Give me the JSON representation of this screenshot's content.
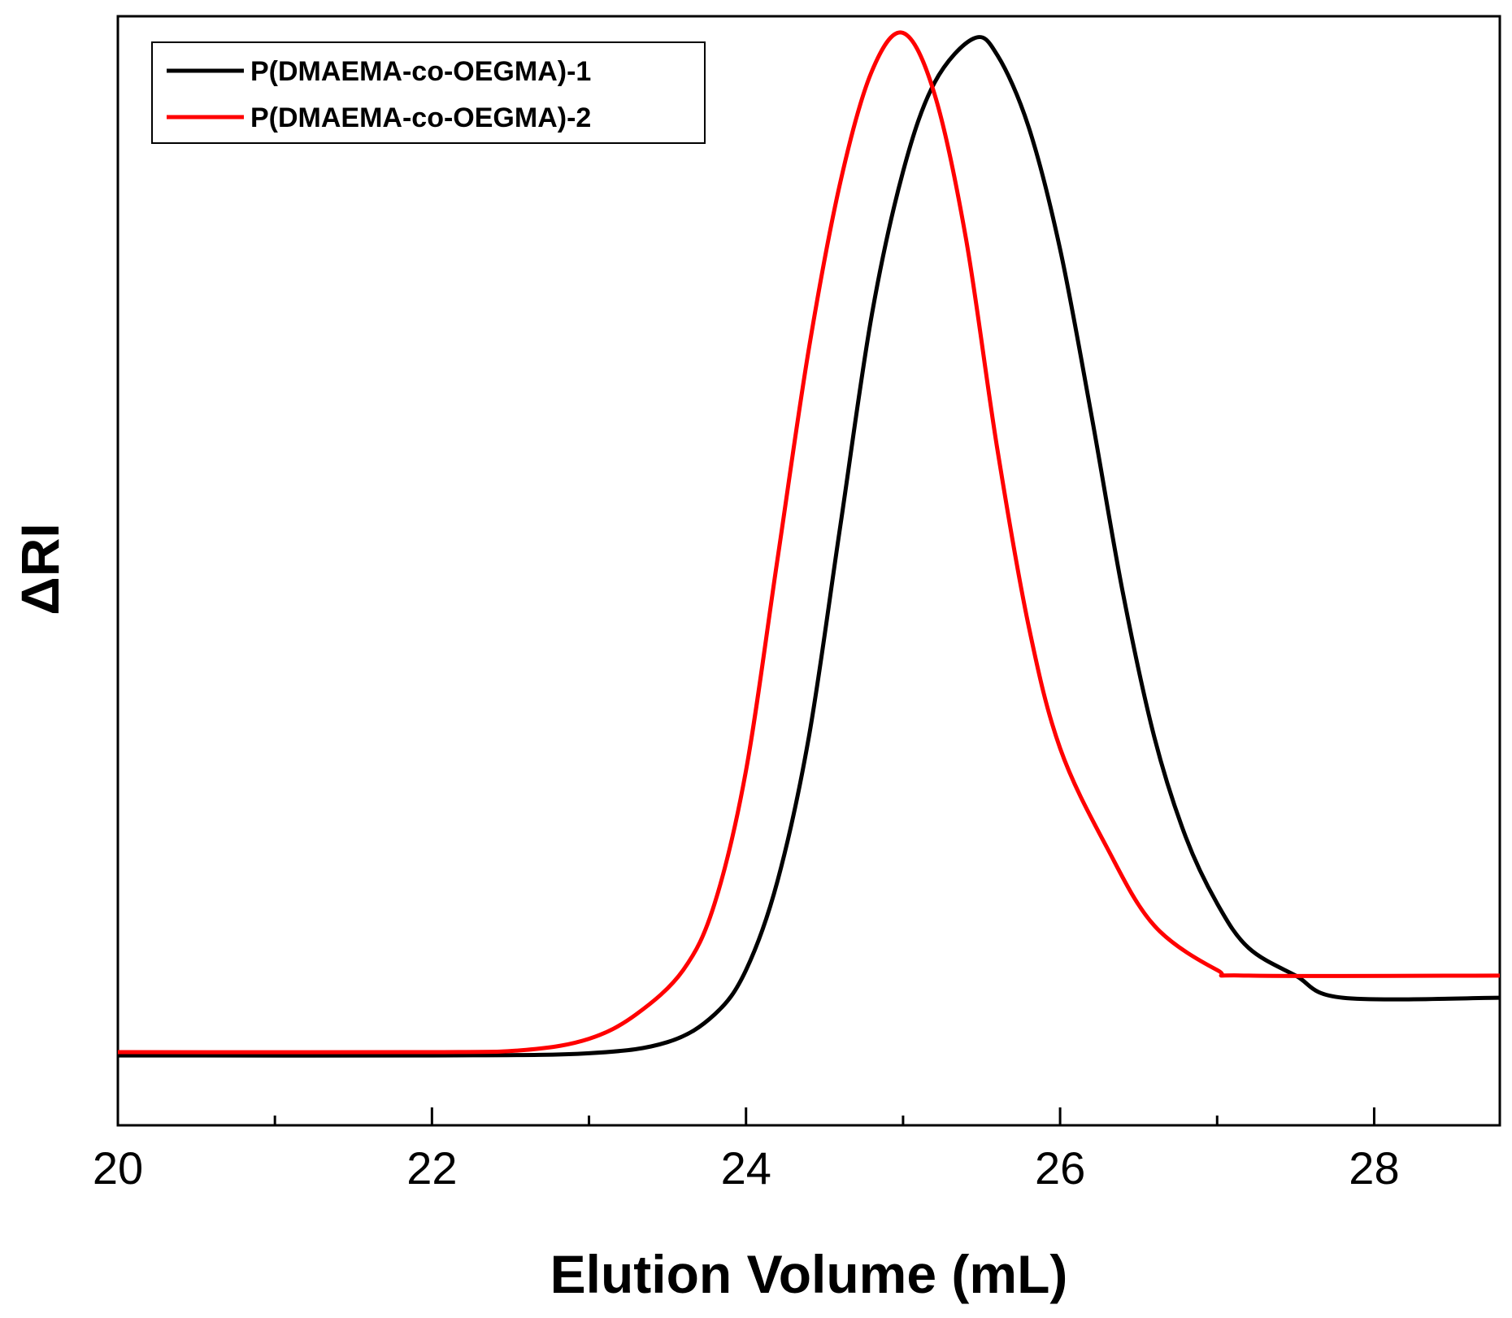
{
  "chart_data": {
    "type": "line",
    "title": "",
    "xlabel": "Elution Volume (mL)",
    "ylabel": "ΔRI",
    "xlim": [
      20,
      28.8
    ],
    "ylim": [
      0,
      1
    ],
    "x_ticks": [
      20,
      22,
      24,
      26,
      28
    ],
    "x_tick_labels": [
      "20",
      "22",
      "24",
      "26",
      "28"
    ],
    "x_minor_ticks": [
      21,
      23,
      25,
      27
    ],
    "y_ticks_shown": false,
    "grid": false,
    "legend_position": "top-left",
    "series": [
      {
        "name": "P(DMAEMA-co-OEGMA)-1",
        "color": "#000000",
        "x": [
          20.0,
          22.0,
          23.0,
          23.5,
          23.8,
          24.0,
          24.2,
          24.4,
          24.6,
          24.8,
          25.0,
          25.2,
          25.45,
          25.6,
          25.8,
          26.0,
          26.2,
          26.4,
          26.6,
          26.8,
          27.0,
          27.2,
          27.5,
          27.8,
          28.8
        ],
        "y": [
          0.063,
          0.063,
          0.065,
          0.075,
          0.1,
          0.14,
          0.22,
          0.35,
          0.54,
          0.73,
          0.86,
          0.94,
          0.98,
          0.965,
          0.9,
          0.79,
          0.64,
          0.48,
          0.35,
          0.26,
          0.2,
          0.16,
          0.135,
          0.115,
          0.115
        ]
      },
      {
        "name": "P(DMAEMA-co-OEGMA)-2",
        "color": "#ff0000",
        "x": [
          20.0,
          22.0,
          22.6,
          23.0,
          23.3,
          23.6,
          23.8,
          24.0,
          24.2,
          24.4,
          24.6,
          24.8,
          25.0,
          25.2,
          25.4,
          25.6,
          25.8,
          26.0,
          26.3,
          26.6,
          27.0,
          27.2,
          28.8
        ],
        "y": [
          0.066,
          0.066,
          0.068,
          0.078,
          0.1,
          0.14,
          0.2,
          0.32,
          0.51,
          0.7,
          0.85,
          0.95,
          0.985,
          0.93,
          0.8,
          0.61,
          0.45,
          0.34,
          0.25,
          0.18,
          0.14,
          0.135,
          0.135
        ]
      }
    ]
  }
}
